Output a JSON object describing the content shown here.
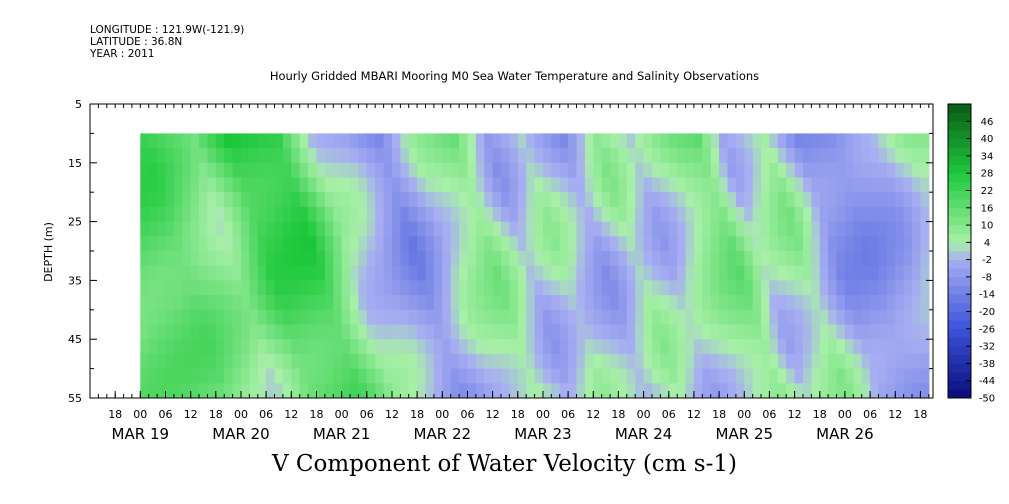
{
  "header": {
    "longitude": "LONGITUDE : 121.9W(-121.9)",
    "latitude": "LATITUDE : 36.8N",
    "year": "YEAR : 2011"
  },
  "title": "Hourly Gridded MBARI Mooring M0 Sea Water Temperature and Salinity Observations",
  "bottom_title": "V Component of Water Velocity (cm s-1)",
  "chart_data": {
    "type": "heatmap",
    "title": "Hourly Gridded MBARI Mooring M0 Sea Water Temperature and Salinity Observations",
    "variable": "V Component of Water Velocity (cm s-1)",
    "ylabel": "DEPTH (m)",
    "y_range": [
      5,
      55
    ],
    "y_inverted": true,
    "y_ticks": [
      5,
      15,
      25,
      35,
      45,
      55
    ],
    "data_depth_range": [
      10,
      55
    ],
    "x_range": [
      "2011-03-18 12:00",
      "2011-03-26 21:00"
    ],
    "data_time_range": [
      "2011-03-19 00:00",
      "2011-03-26 20:00"
    ],
    "hour_ticks": [
      "18",
      "00",
      "06",
      "12",
      "18",
      "00",
      "06",
      "12",
      "18",
      "00",
      "06",
      "12",
      "18",
      "00",
      "06",
      "12",
      "18",
      "00",
      "06",
      "12",
      "18",
      "00",
      "06",
      "12",
      "18",
      "00",
      "06",
      "12",
      "18",
      "00",
      "06",
      "12",
      "18"
    ],
    "date_labels": [
      "MAR 19",
      "MAR 20",
      "MAR 21",
      "MAR 22",
      "MAR 23",
      "MAR 24",
      "MAR 25",
      "MAR 26"
    ],
    "colorbar_ticks": [
      "46",
      "40",
      "34",
      "28",
      "22",
      "16",
      "10",
      "4",
      "-2",
      "-8",
      "-14",
      "-20",
      "-26",
      "-32",
      "-38",
      "-44",
      "-50"
    ],
    "colorbar_range": [
      -50,
      52
    ],
    "grid": false,
    "legend": "colorbar-right",
    "colors": {
      "strong_positive": "#0a5a14",
      "positive": "#1ec93c",
      "weak_positive": "#a8f0a8",
      "weak_negative": "#a7aef2",
      "negative": "#3b52d9",
      "strong_negative": "#0a0a7a"
    },
    "approx_v_by_time_near_surface": [
      {
        "time": "03-19 00:00",
        "v": 22
      },
      {
        "time": "03-19 12:00",
        "v": 8
      },
      {
        "time": "03-19 20:00",
        "v": 26
      },
      {
        "time": "03-20 08:00",
        "v": 28
      },
      {
        "time": "03-20 16:00",
        "v": 4
      },
      {
        "time": "03-21 00:00",
        "v": -2
      },
      {
        "time": "03-21 08:00",
        "v": -14
      },
      {
        "time": "03-21 16:00",
        "v": 2
      },
      {
        "time": "03-22 02:00",
        "v": 12
      },
      {
        "time": "03-22 10:00",
        "v": -6
      },
      {
        "time": "03-22 18:00",
        "v": 6
      },
      {
        "time": "03-23 04:00",
        "v": -8
      },
      {
        "time": "03-23 12:00",
        "v": 8
      },
      {
        "time": "03-23 20:00",
        "v": -4
      },
      {
        "time": "03-24 06:00",
        "v": 10
      },
      {
        "time": "03-24 12:00",
        "v": 16
      },
      {
        "time": "03-24 18:00",
        "v": -2
      },
      {
        "time": "03-25 04:00",
        "v": 10
      },
      {
        "time": "03-25 12:00",
        "v": -10
      },
      {
        "time": "03-25 20:00",
        "v": -12
      },
      {
        "time": "03-26 06:00",
        "v": -6
      },
      {
        "time": "03-26 14:00",
        "v": 6
      },
      {
        "time": "03-26 20:00",
        "v": 10
      }
    ]
  }
}
